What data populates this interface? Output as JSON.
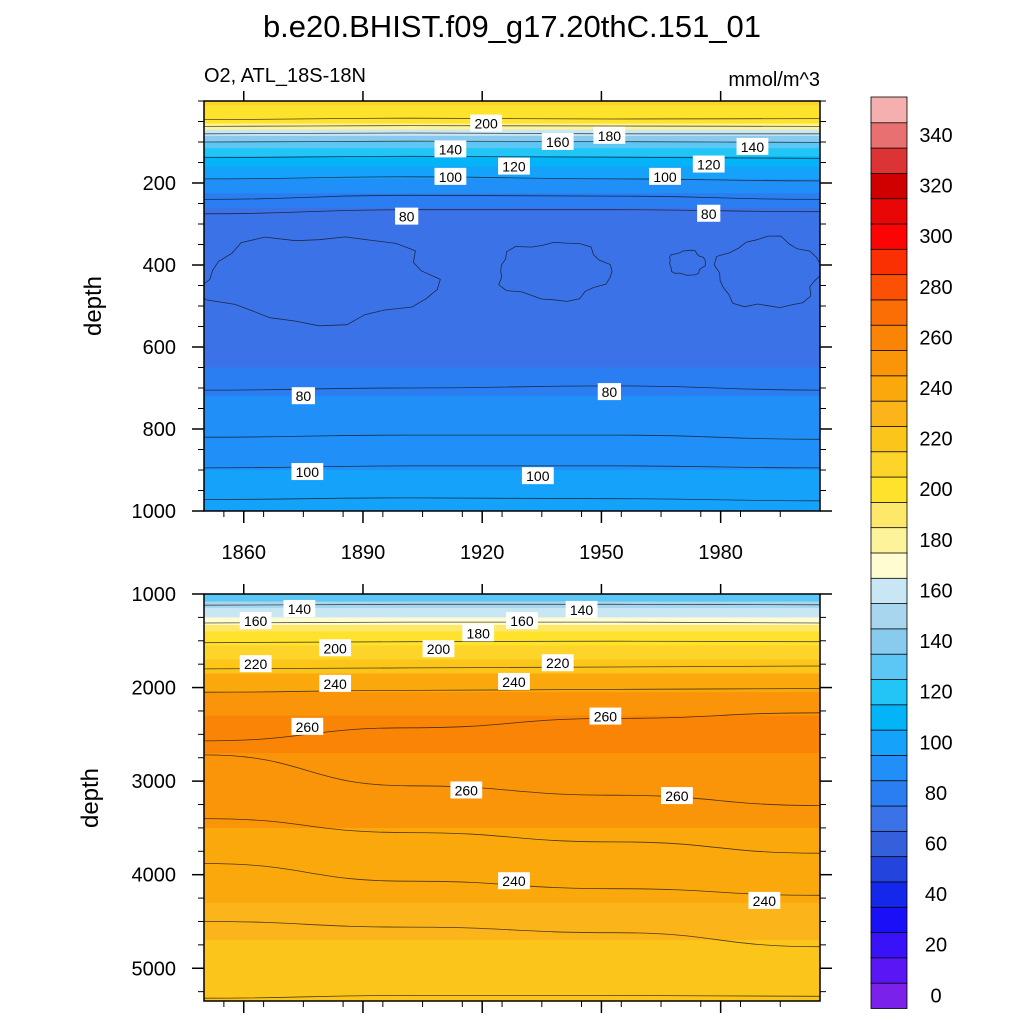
{
  "figure": {
    "title": "b.e20.BHIST.f09_g17.20thC.151_01",
    "left_subtitle": "O2, ATL_18S-18N",
    "right_subtitle": "mmol/m^3"
  },
  "chart_data": [
    {
      "type": "contour",
      "panel": "upper",
      "variable": "O2, ATL_18S-18N",
      "units": "mmol/m^3",
      "ylabel": "depth",
      "xlabel": "",
      "xlim": [
        1850,
        2005
      ],
      "ylim": [
        0,
        1000
      ],
      "y_reversed": true,
      "xticks": [
        1860,
        1890,
        1920,
        1950,
        1980
      ],
      "xtick_labels": [
        "1860",
        "1890",
        "1920",
        "1950",
        "1980"
      ],
      "yticks": [
        200,
        400,
        600,
        800,
        1000
      ],
      "ytick_labels": [
        "200",
        "400",
        "600",
        "800",
        "1000"
      ],
      "bands": [
        {
          "depth": 10,
          "value": 215
        },
        {
          "depth": 40,
          "value": 208
        },
        {
          "depth": 55,
          "value": 200
        },
        {
          "depth": 70,
          "value": 185
        },
        {
          "depth": 85,
          "value": 165
        },
        {
          "depth": 100,
          "value": 148
        },
        {
          "depth": 115,
          "value": 135
        },
        {
          "depth": 135,
          "value": 122
        },
        {
          "depth": 160,
          "value": 110
        },
        {
          "depth": 190,
          "value": 100
        },
        {
          "depth": 225,
          "value": 95
        },
        {
          "depth": 260,
          "value": 87
        },
        {
          "depth": 320,
          "value": 78
        },
        {
          "depth": 400,
          "value": 73
        },
        {
          "depth": 500,
          "value": 73
        },
        {
          "depth": 560,
          "value": 77
        },
        {
          "depth": 650,
          "value": 78
        },
        {
          "depth": 720,
          "value": 82
        },
        {
          "depth": 820,
          "value": 90
        },
        {
          "depth": 900,
          "value": 97
        },
        {
          "depth": 980,
          "value": 105
        },
        {
          "depth": 1000,
          "value": 107
        }
      ],
      "contour_lines": [
        {
          "level": 200,
          "depths": [
            45,
            42,
            44,
            43
          ]
        },
        {
          "level": 180,
          "depths": [
            62,
            60,
            61,
            62
          ]
        },
        {
          "level": 160,
          "depths": [
            80,
            78,
            80,
            80
          ]
        },
        {
          "level": 140,
          "depths": [
            100,
            98,
            99,
            101
          ]
        },
        {
          "level": 120,
          "depths": [
            138,
            135,
            137,
            140
          ]
        },
        {
          "level": 100,
          "depths": [
            190,
            185,
            190,
            195
          ]
        },
        {
          "level": 90,
          "depths": [
            240,
            230,
            232,
            240
          ]
        },
        {
          "level": 80,
          "depths": [
            275,
            265,
            265,
            270
          ]
        },
        {
          "level": 80,
          "depths": [
            705,
            700,
            695,
            705
          ]
        },
        {
          "level": 90,
          "depths": [
            820,
            815,
            815,
            825
          ]
        },
        {
          "level": 100,
          "depths": [
            895,
            890,
            890,
            895
          ]
        },
        {
          "level": 110,
          "depths": [
            972,
            968,
            970,
            975
          ]
        }
      ],
      "min_patches": [
        {
          "level": 70,
          "x_range": [
            1850,
            1908
          ],
          "depth_range": [
            330,
            540
          ]
        },
        {
          "level": 70,
          "x_range": [
            1924,
            1952
          ],
          "depth_range": [
            345,
            485
          ]
        },
        {
          "level": 70,
          "x_range": [
            1967,
            1976
          ],
          "depth_range": [
            365,
            425
          ]
        },
        {
          "level": 70,
          "x_range": [
            1979,
            2005
          ],
          "depth_range": [
            335,
            505
          ]
        }
      ],
      "labels": [
        {
          "text": "200",
          "x": 1921,
          "depth": 55
        },
        {
          "text": "160",
          "x": 1939,
          "depth": 100
        },
        {
          "text": "180",
          "x": 1952,
          "depth": 85
        },
        {
          "text": "140",
          "x": 1912,
          "depth": 118
        },
        {
          "text": "140",
          "x": 1988,
          "depth": 112
        },
        {
          "text": "120",
          "x": 1928,
          "depth": 160
        },
        {
          "text": "120",
          "x": 1977,
          "depth": 155
        },
        {
          "text": "100",
          "x": 1912,
          "depth": 185
        },
        {
          "text": "100",
          "x": 1966,
          "depth": 185
        },
        {
          "text": "80",
          "x": 1901,
          "depth": 282
        },
        {
          "text": "80",
          "x": 1977,
          "depth": 275
        },
        {
          "text": "80",
          "x": 1875,
          "depth": 720
        },
        {
          "text": "80",
          "x": 1952,
          "depth": 710
        },
        {
          "text": "100",
          "x": 1876,
          "depth": 905
        },
        {
          "text": "100",
          "x": 1934,
          "depth": 915
        }
      ]
    },
    {
      "type": "contour",
      "panel": "lower",
      "variable": "O2, ATL_18S-18N",
      "units": "mmol/m^3",
      "ylabel": "depth",
      "xlabel": "",
      "xlim": [
        1850,
        2005
      ],
      "ylim": [
        1000,
        5350
      ],
      "y_reversed": true,
      "xticks": [
        1860,
        1890,
        1920,
        1950,
        1980
      ],
      "xtick_labels": [
        "",
        "",
        "",
        "",
        ""
      ],
      "yticks": [
        1000,
        2000,
        3000,
        4000,
        5000
      ],
      "ytick_labels": [
        "1000",
        "2000",
        "3000",
        "4000",
        "5000"
      ],
      "bands": [
        {
          "depth": 1000,
          "value": 118
        },
        {
          "depth": 1080,
          "value": 135
        },
        {
          "depth": 1150,
          "value": 150
        },
        {
          "depth": 1250,
          "value": 160
        },
        {
          "depth": 1330,
          "value": 172
        },
        {
          "depth": 1400,
          "value": 190
        },
        {
          "depth": 1550,
          "value": 205
        },
        {
          "depth": 1700,
          "value": 215
        },
        {
          "depth": 1850,
          "value": 225
        },
        {
          "depth": 2050,
          "value": 240
        },
        {
          "depth": 2300,
          "value": 255
        },
        {
          "depth": 2700,
          "value": 262
        },
        {
          "depth": 3100,
          "value": 258
        },
        {
          "depth": 3500,
          "value": 252
        },
        {
          "depth": 3900,
          "value": 246
        },
        {
          "depth": 4300,
          "value": 240
        },
        {
          "depth": 4700,
          "value": 232
        },
        {
          "depth": 5100,
          "value": 226
        },
        {
          "depth": 5350,
          "value": 222
        }
      ],
      "contour_lines": [
        {
          "level": 160,
          "depths": [
            1120,
            1110,
            1110,
            1115
          ]
        },
        {
          "level": 180,
          "depths": [
            1310,
            1300,
            1300,
            1310
          ]
        },
        {
          "level": 200,
          "depths": [
            1520,
            1510,
            1505,
            1510
          ]
        },
        {
          "level": 220,
          "depths": [
            1800,
            1790,
            1780,
            1770
          ]
        },
        {
          "level": 240,
          "depths": [
            2050,
            2030,
            2020,
            2010
          ]
        },
        {
          "level": 260,
          "depths": [
            2570,
            2430,
            2330,
            2270
          ]
        },
        {
          "level": 260,
          "depths": [
            2720,
            3050,
            3150,
            3260
          ]
        },
        {
          "level": 250,
          "depths": [
            3400,
            3550,
            3650,
            3770
          ]
        },
        {
          "level": 240,
          "depths": [
            3880,
            4070,
            4150,
            4220
          ]
        },
        {
          "level": 230,
          "depths": [
            4500,
            4560,
            4620,
            4770
          ]
        },
        {
          "level": 220,
          "depths": [
            5320,
            5290,
            5290,
            5300
          ]
        }
      ],
      "labels": [
        {
          "text": "140",
          "x": 1874,
          "depth": 1160
        },
        {
          "text": "160",
          "x": 1863,
          "depth": 1290
        },
        {
          "text": "160",
          "x": 1930,
          "depth": 1290
        },
        {
          "text": "140",
          "x": 1945,
          "depth": 1170
        },
        {
          "text": "180",
          "x": 1919,
          "depth": 1420
        },
        {
          "text": "200",
          "x": 1883,
          "depth": 1580
        },
        {
          "text": "200",
          "x": 1909,
          "depth": 1590
        },
        {
          "text": "220",
          "x": 1863,
          "depth": 1750
        },
        {
          "text": "220",
          "x": 1939,
          "depth": 1740
        },
        {
          "text": "240",
          "x": 1883,
          "depth": 1960
        },
        {
          "text": "240",
          "x": 1928,
          "depth": 1940
        },
        {
          "text": "260",
          "x": 1876,
          "depth": 2420
        },
        {
          "text": "260",
          "x": 1951,
          "depth": 2310
        },
        {
          "text": "260",
          "x": 1916,
          "depth": 3100
        },
        {
          "text": "260",
          "x": 1969,
          "depth": 3160
        },
        {
          "text": "240",
          "x": 1928,
          "depth": 4070
        },
        {
          "text": "240",
          "x": 1991,
          "depth": 4280
        }
      ]
    }
  ],
  "colorbar": {
    "levels": [
      0,
      10,
      20,
      30,
      40,
      50,
      60,
      70,
      80,
      90,
      100,
      110,
      120,
      130,
      140,
      150,
      160,
      170,
      180,
      190,
      200,
      210,
      220,
      230,
      240,
      250,
      260,
      270,
      280,
      290,
      300,
      310,
      320,
      330,
      340,
      350
    ],
    "labels": [
      "0",
      "20",
      "40",
      "60",
      "80",
      "100",
      "120",
      "140",
      "160",
      "180",
      "200",
      "220",
      "240",
      "260",
      "280",
      "300",
      "320",
      "340"
    ],
    "colors": [
      "#7a22ea",
      "#5a16f4",
      "#3a12f7",
      "#1a10f8",
      "#1428ec",
      "#2444de",
      "#3460dc",
      "#3c72e8",
      "#2a7ef2",
      "#2090f8",
      "#14a2fb",
      "#04b4f8",
      "#22c6f6",
      "#5cc6f4",
      "#88cbee",
      "#a8d6ee",
      "#c8e6f4",
      "#fefcd0",
      "#fdf39a",
      "#fde86a",
      "#fee22c",
      "#fdd52a",
      "#fcc51a",
      "#fbb51a",
      "#fba80c",
      "#fa9408",
      "#fa8406",
      "#fb6e06",
      "#fc5004",
      "#fb3002",
      "#fd0404",
      "#e80606",
      "#cf0000",
      "#dc3434",
      "#e87070",
      "#f6afaf"
    ]
  }
}
